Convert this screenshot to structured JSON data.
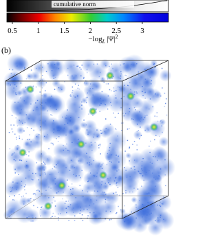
{
  "colorbar": {
    "norm_label": "cumulative norm",
    "ticks": [
      "0.5",
      "1",
      "1.5",
      "2",
      "2.5",
      "3"
    ],
    "axis_label": {
      "main": "−log",
      "sub": "L",
      "base": "|Ψ|",
      "sup": "2"
    }
  },
  "panel_label": "(b)"
}
